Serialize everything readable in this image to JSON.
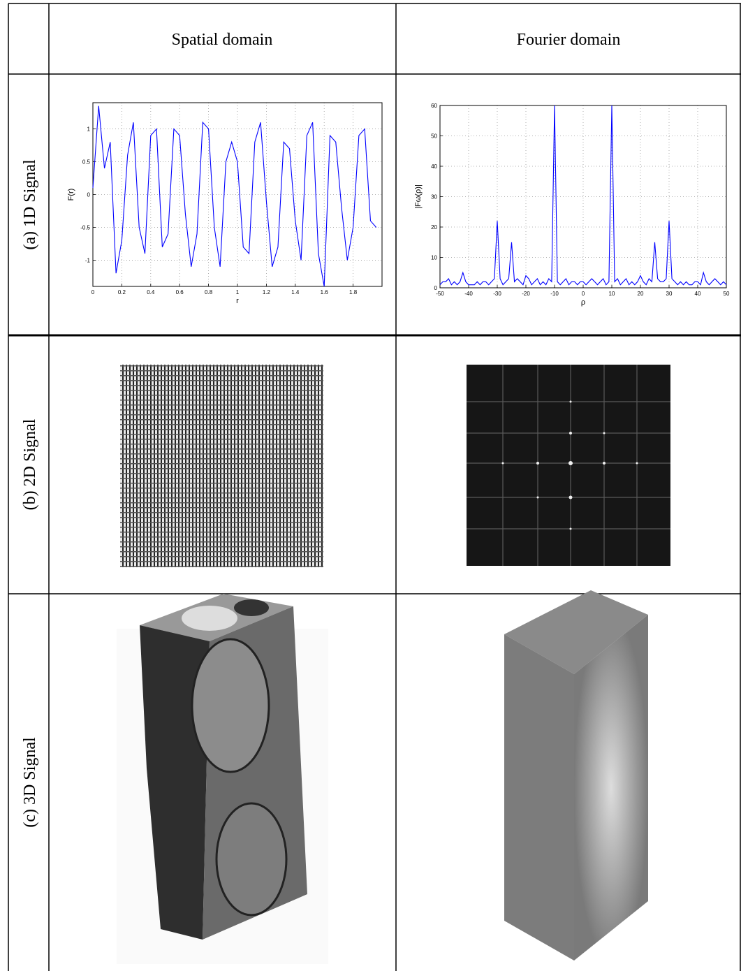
{
  "table": {
    "columns": [
      "Spatial domain",
      "Fourier domain"
    ],
    "rows": [
      "(a) 1D Signal",
      "(b) 2D Signal",
      "(c) 3D Signal"
    ]
  },
  "chart_data": [
    {
      "type": "line",
      "xlabel": "r",
      "ylabel": "F(r)",
      "x": [
        0,
        0.04,
        0.08,
        0.12,
        0.16,
        0.2,
        0.24,
        0.28,
        0.32,
        0.36,
        0.4,
        0.44,
        0.48,
        0.52,
        0.56,
        0.6,
        0.64,
        0.68,
        0.72,
        0.76,
        0.8,
        0.84,
        0.88,
        0.92,
        0.96,
        1.0,
        1.04,
        1.08,
        1.12,
        1.16,
        1.2,
        1.24,
        1.28,
        1.32,
        1.36,
        1.4,
        1.44,
        1.48,
        1.52,
        1.56,
        1.6,
        1.64,
        1.68,
        1.72,
        1.76,
        1.8,
        1.84,
        1.88,
        1.92,
        1.96
      ],
      "series": [
        {
          "color": "#0000ff",
          "values": [
            0.1,
            1.35,
            0.4,
            0.8,
            -1.2,
            -0.7,
            0.6,
            1.1,
            -0.5,
            -0.9,
            0.9,
            1.0,
            -0.8,
            -0.6,
            1.0,
            0.9,
            -0.3,
            -1.1,
            -0.6,
            1.1,
            1.0,
            -0.5,
            -1.1,
            0.5,
            0.8,
            0.5,
            -0.8,
            -0.9,
            0.8,
            1.1,
            -0.1,
            -1.1,
            -0.8,
            0.8,
            0.7,
            -0.4,
            -1.0,
            0.9,
            1.1,
            -0.9,
            -1.4,
            0.9,
            0.8,
            -0.2,
            -1.0,
            -0.5,
            0.9,
            1.0,
            -0.4,
            -0.5
          ]
        }
      ],
      "xlim": [
        0,
        2
      ],
      "ylim": [
        -1.4,
        1.4
      ],
      "xticks": [
        0,
        0.2,
        0.4,
        0.6,
        0.8,
        1,
        1.2,
        1.4,
        1.6,
        1.8
      ],
      "yticks": [
        -1,
        -0.5,
        0,
        0.5,
        1
      ],
      "grid": true
    },
    {
      "type": "line",
      "xlabel": "ρ",
      "ylabel": "|Fω(ρ)|",
      "x": [
        -50,
        -49,
        -48,
        -47,
        -46,
        -45,
        -44,
        -43,
        -42,
        -41,
        -40,
        -39,
        -38,
        -37,
        -36,
        -35,
        -34,
        -33,
        -32,
        -31,
        -30,
        -29,
        -28,
        -27,
        -26,
        -25,
        -24,
        -23,
        -22,
        -21,
        -20,
        -19,
        -18,
        -17,
        -16,
        -15,
        -14,
        -13,
        -12,
        -11,
        -10,
        -9,
        -8,
        -7,
        -6,
        -5,
        -4,
        -3,
        -2,
        -1,
        0,
        1,
        2,
        3,
        4,
        5,
        6,
        7,
        8,
        9,
        10,
        11,
        12,
        13,
        14,
        15,
        16,
        17,
        18,
        19,
        20,
        21,
        22,
        23,
        24,
        25,
        26,
        27,
        28,
        29,
        30,
        31,
        32,
        33,
        34,
        35,
        36,
        37,
        38,
        39,
        40,
        41,
        42,
        43,
        44,
        45,
        46,
        47,
        48,
        49,
        50
      ],
      "series": [
        {
          "color": "#0000ff",
          "values": [
            1,
            2,
            2,
            3,
            1,
            2,
            1,
            2,
            5,
            2,
            1,
            1,
            1,
            2,
            1,
            2,
            2,
            1,
            2,
            3,
            22,
            3,
            1,
            2,
            3,
            15,
            2,
            3,
            2,
            1,
            4,
            3,
            1,
            2,
            3,
            1,
            2,
            1,
            3,
            2,
            60,
            2,
            1,
            2,
            3,
            1,
            2,
            2,
            1,
            2,
            2,
            1,
            2,
            3,
            2,
            1,
            2,
            3,
            1,
            2,
            60,
            2,
            3,
            1,
            2,
            3,
            1,
            2,
            1,
            2,
            4,
            2,
            1,
            3,
            2,
            15,
            3,
            2,
            2,
            3,
            22,
            3,
            2,
            1,
            2,
            1,
            2,
            1,
            1,
            2,
            2,
            1,
            5,
            2,
            1,
            2,
            3,
            2,
            1,
            2,
            1
          ]
        }
      ],
      "xlim": [
        -50,
        50
      ],
      "ylim": [
        0,
        60
      ],
      "xticks": [
        -50,
        -40,
        -30,
        -20,
        -10,
        0,
        10,
        20,
        30,
        40,
        50
      ],
      "yticks": [
        0,
        10,
        20,
        30,
        40,
        50,
        60
      ],
      "grid": true
    }
  ]
}
